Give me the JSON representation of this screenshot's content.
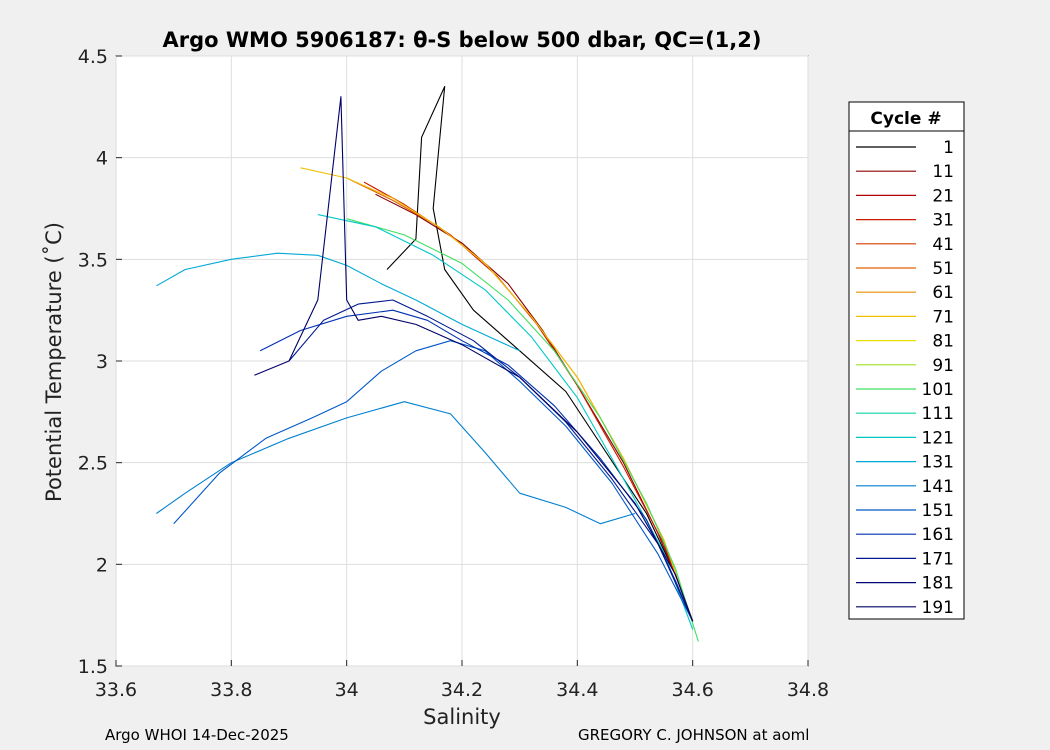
{
  "chart_data": {
    "type": "line",
    "title": "Argo WMO 5906187: θ-S below 500 dbar,  QC=(1,2)",
    "xlabel": "Salinity",
    "ylabel": "Potential Temperature (˚C)",
    "xlim": [
      33.6,
      34.8
    ],
    "ylim": [
      1.5,
      4.5
    ],
    "x_ticks": [
      "33.6",
      "33.8",
      "34",
      "34.2",
      "34.4",
      "34.6",
      "34.8"
    ],
    "y_ticks": [
      "1.5",
      "2",
      "2.5",
      "3",
      "3.5",
      "4",
      "4.5"
    ],
    "grid": true,
    "legend_title": "Cycle #",
    "legend_position": "right",
    "legend": [
      {
        "label": "1",
        "color": "#000000"
      },
      {
        "label": "11",
        "color": "#8b0000"
      },
      {
        "label": "21",
        "color": "#b30000"
      },
      {
        "label": "31",
        "color": "#cc1a00"
      },
      {
        "label": "41",
        "color": "#d93a00"
      },
      {
        "label": "51",
        "color": "#e06000"
      },
      {
        "label": "61",
        "color": "#e89000"
      },
      {
        "label": "71",
        "color": "#f0c000"
      },
      {
        "label": "81",
        "color": "#e8e000"
      },
      {
        "label": "91",
        "color": "#9be020"
      },
      {
        "label": "101",
        "color": "#40e060"
      },
      {
        "label": "111",
        "color": "#10d0a0"
      },
      {
        "label": "121",
        "color": "#00c8c8"
      },
      {
        "label": "131",
        "color": "#00a8d8"
      },
      {
        "label": "141",
        "color": "#0080d0"
      },
      {
        "label": "151",
        "color": "#0058c8"
      },
      {
        "label": "161",
        "color": "#0030b0"
      },
      {
        "label": "171",
        "color": "#001890"
      },
      {
        "label": "181",
        "color": "#000878"
      },
      {
        "label": "191",
        "color": "#000066"
      }
    ],
    "series": [
      {
        "name": "1",
        "color": "#000000",
        "x": [
          34.07,
          34.12,
          34.13,
          34.17,
          34.16,
          34.15,
          34.17,
          34.22,
          34.3,
          34.38,
          34.45,
          34.52,
          34.57,
          34.6
        ],
        "y": [
          3.45,
          3.6,
          4.1,
          4.35,
          4.05,
          3.75,
          3.45,
          3.25,
          3.05,
          2.85,
          2.55,
          2.25,
          1.95,
          1.72
        ]
      },
      {
        "name": "11",
        "color": "#8b0000",
        "x": [
          34.05,
          34.12,
          34.2,
          34.28,
          34.34,
          34.4,
          34.48,
          34.54,
          34.58,
          34.6
        ],
        "y": [
          3.82,
          3.72,
          3.58,
          3.38,
          3.15,
          2.88,
          2.5,
          2.15,
          1.88,
          1.72
        ]
      },
      {
        "name": "31",
        "color": "#cc1a00",
        "x": [
          34.03,
          34.1,
          34.18,
          34.26,
          34.33,
          34.4,
          34.48,
          34.55,
          34.6
        ],
        "y": [
          3.88,
          3.77,
          3.62,
          3.42,
          3.18,
          2.88,
          2.48,
          2.1,
          1.72
        ]
      },
      {
        "name": "51",
        "color": "#e06000",
        "x": [
          34.0,
          34.08,
          34.16,
          34.24,
          34.32,
          34.4,
          34.48,
          34.55,
          34.6
        ],
        "y": [
          3.9,
          3.79,
          3.66,
          3.48,
          3.22,
          2.92,
          2.52,
          2.12,
          1.72
        ]
      },
      {
        "name": "71",
        "color": "#f0c000",
        "x": [
          33.92,
          34.0,
          34.08,
          34.16,
          34.24,
          34.32,
          34.4,
          34.48,
          34.55,
          34.6
        ],
        "y": [
          3.95,
          3.9,
          3.8,
          3.66,
          3.48,
          3.22,
          2.92,
          2.52,
          2.12,
          1.72
        ]
      },
      {
        "name": "101",
        "color": "#40e060",
        "x": [
          34.0,
          34.1,
          34.2,
          34.28,
          34.36,
          34.44,
          34.52,
          34.57,
          34.61
        ],
        "y": [
          3.7,
          3.62,
          3.48,
          3.3,
          3.05,
          2.72,
          2.3,
          1.98,
          1.62
        ]
      },
      {
        "name": "121",
        "color": "#00c8c8",
        "x": [
          33.95,
          34.05,
          34.15,
          34.24,
          34.32,
          34.4,
          34.48,
          34.55,
          34.6
        ],
        "y": [
          3.72,
          3.66,
          3.52,
          3.35,
          3.12,
          2.82,
          2.42,
          2.06,
          1.68
        ]
      },
      {
        "name": "131",
        "color": "#00a8d8",
        "x": [
          33.67,
          33.72,
          33.8,
          33.88,
          33.95,
          34.0,
          34.06,
          34.12,
          34.2,
          34.3
        ],
        "y": [
          3.37,
          3.45,
          3.5,
          3.53,
          3.52,
          3.47,
          3.38,
          3.3,
          3.18,
          3.05
        ]
      },
      {
        "name": "141",
        "color": "#0080d0",
        "x": [
          33.67,
          33.72,
          33.8,
          33.9,
          34.0,
          34.1,
          34.18,
          34.24,
          34.3,
          34.38,
          34.44,
          34.5
        ],
        "y": [
          2.25,
          2.35,
          2.5,
          2.62,
          2.72,
          2.8,
          2.74,
          2.55,
          2.35,
          2.28,
          2.2,
          2.25
        ]
      },
      {
        "name": "151",
        "color": "#0058c8",
        "x": [
          33.7,
          33.78,
          33.86,
          33.94,
          34.0,
          34.06,
          34.12,
          34.18,
          34.24,
          34.3,
          34.38,
          34.46,
          34.54,
          34.6
        ],
        "y": [
          2.2,
          2.45,
          2.62,
          2.72,
          2.8,
          2.95,
          3.05,
          3.1,
          3.05,
          2.9,
          2.68,
          2.4,
          2.05,
          1.72
        ]
      },
      {
        "name": "161",
        "color": "#0030b0",
        "x": [
          33.85,
          33.92,
          34.0,
          34.08,
          34.14,
          34.2,
          34.28,
          34.36,
          34.44,
          34.52,
          34.57,
          34.6
        ],
        "y": [
          3.05,
          3.15,
          3.22,
          3.25,
          3.2,
          3.1,
          2.98,
          2.78,
          2.52,
          2.22,
          1.92,
          1.72
        ]
      },
      {
        "name": "171",
        "color": "#001890",
        "x": [
          33.9,
          33.96,
          34.02,
          34.08,
          34.14,
          34.22,
          34.3,
          34.38,
          34.46,
          34.54,
          34.6
        ],
        "y": [
          3.0,
          3.2,
          3.28,
          3.3,
          3.22,
          3.1,
          2.92,
          2.7,
          2.42,
          2.1,
          1.72
        ]
      },
      {
        "name": "191",
        "color": "#000066",
        "x": [
          33.84,
          33.9,
          33.95,
          33.99,
          34.0,
          34.02,
          34.06,
          34.12,
          34.2,
          34.3,
          34.4,
          34.5,
          34.57,
          34.6
        ],
        "y": [
          2.93,
          3.0,
          3.3,
          4.3,
          3.3,
          3.2,
          3.22,
          3.18,
          3.08,
          2.92,
          2.65,
          2.3,
          1.95,
          1.72
        ]
      }
    ]
  },
  "footer": {
    "left": "Argo WHOI 14-Dec-2025",
    "right": "GREGORY C. JOHNSON at aoml"
  }
}
